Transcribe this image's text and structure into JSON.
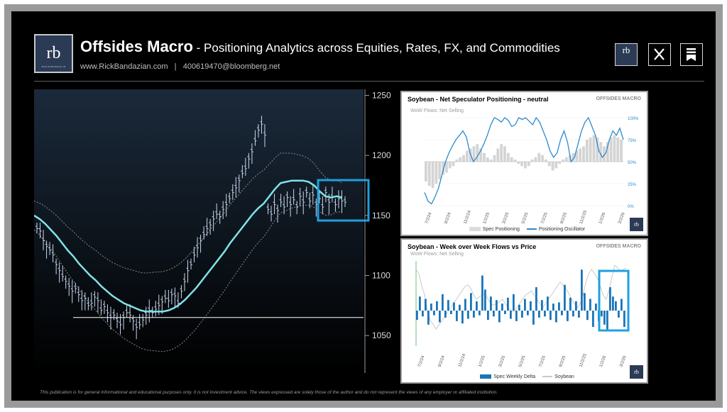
{
  "header": {
    "brand": "Offsides Macro",
    "tagline": " - Positioning Analytics across Equities, Rates, FX, and Commodities",
    "website": "www.RickBandazian.com",
    "separator": "|",
    "contact": "400619470@bloomberg.net",
    "logo_text": "rb",
    "logo_subtext": "RICK BANDAZIAN, JR"
  },
  "social": {
    "icons": [
      "rb-logo-icon",
      "x-icon",
      "substack-icon"
    ]
  },
  "colors": {
    "background": "#000000",
    "accent": "#1ea0e0",
    "moving_average": "#7fe3e8",
    "price_bars": "#c8d8ee",
    "bar_blue": "#1a74b8",
    "oscillator": "#2b8bd0"
  },
  "chart_data": [
    {
      "type": "ohlc",
      "y_ticks": [
        1250,
        1200,
        1150,
        1100,
        1050
      ],
      "ylim": [
        1020,
        1255
      ],
      "support_line": 1065,
      "prices": [
        1140,
        1138,
        1130,
        1125,
        1122,
        1118,
        1110,
        1105,
        1100,
        1096,
        1092,
        1088,
        1090,
        1085,
        1080,
        1082,
        1076,
        1078,
        1083,
        1080,
        1072,
        1075,
        1070,
        1066,
        1068,
        1063,
        1060,
        1066,
        1070,
        1068,
        1063,
        1058,
        1060,
        1064,
        1068,
        1072,
        1070,
        1073,
        1076,
        1079,
        1082,
        1080,
        1085,
        1084,
        1078,
        1088,
        1096,
        1105,
        1110,
        1118,
        1124,
        1130,
        1135,
        1140,
        1143,
        1148,
        1152,
        1150,
        1156,
        1160,
        1165,
        1170,
        1174,
        1180,
        1186,
        1190,
        1198,
        1204,
        1213,
        1222,
        1227,
        1218,
        1156,
        1152,
        1160,
        1155,
        1162,
        1158,
        1166,
        1160,
        1164,
        1158,
        1167,
        1162,
        1170,
        1163,
        1168,
        1160,
        1165,
        1158,
        1170,
        1162,
        1166,
        1160,
        1165,
        1163,
        1162
      ],
      "moving_average": [
        1150,
        1147,
        1143,
        1138,
        1133,
        1127,
        1121,
        1116,
        1110,
        1105,
        1100,
        1096,
        1091,
        1087,
        1083,
        1080,
        1077,
        1075,
        1073,
        1071,
        1070,
        1070,
        1070,
        1070,
        1071,
        1073,
        1076,
        1080,
        1085,
        1090,
        1096,
        1102,
        1108,
        1114,
        1120,
        1127,
        1133,
        1139,
        1145,
        1151,
        1156,
        1160,
        1166,
        1172,
        1177,
        1178,
        1179,
        1179,
        1179,
        1178,
        1175,
        1170,
        1166,
        1165,
        1166,
        1165
      ]
    },
    {
      "type": "bar",
      "title": "Soybean - Net Speculator Positioning - neutral",
      "subtitle": "WoW Flows: Net Selling",
      "brand": "OFFSIDES MACRO",
      "x_labels": [
        "7/2/24",
        "9/2/24",
        "11/2/24",
        "1/2/25",
        "3/2/25",
        "5/2/25",
        "7/2/25",
        "9/2/25",
        "11/2/25",
        "1/2/26",
        "3/2/26"
      ],
      "y_right_labels": [
        "100%",
        "75%",
        "50%",
        "25%",
        "0%"
      ],
      "series": [
        {
          "name": "Spec Positioning",
          "values": [
            -0.45,
            -0.55,
            -0.6,
            -0.5,
            -0.4,
            -0.3,
            -0.25,
            -0.15,
            -0.1,
            0.05,
            0.1,
            0.15,
            0.25,
            0.3,
            0.35,
            0.4,
            0.3,
            0.2,
            0.1,
            0.05,
            0.15,
            0.3,
            0.4,
            0.35,
            0.2,
            0.1,
            0.05,
            -0.05,
            -0.1,
            -0.15,
            -0.1,
            0.05,
            0.1,
            0.2,
            0.15,
            0.05,
            -0.1,
            -0.2,
            -0.15,
            -0.05,
            0.05,
            0.1,
            0.15,
            0.2,
            0.25,
            0.3,
            0.35,
            0.5,
            0.55,
            0.6,
            0.55,
            0.45,
            0.35,
            0.45,
            0.55,
            0.6,
            0.55,
            0.5
          ]
        },
        {
          "name": "Positioning Oscillator",
          "values": [
            0.15,
            0.05,
            0.02,
            0.1,
            0.2,
            0.35,
            0.5,
            0.6,
            0.68,
            0.75,
            0.8,
            0.85,
            0.78,
            0.6,
            0.5,
            0.55,
            0.62,
            0.7,
            0.8,
            0.92,
            1.0,
            0.98,
            0.95,
            1.0,
            0.97,
            0.9,
            0.92,
            1.0,
            0.98,
            1.0,
            0.96,
            0.92,
            1.0,
            0.95,
            0.85,
            0.75,
            0.62,
            0.55,
            0.6,
            0.75,
            0.85,
            0.72,
            0.5,
            0.55,
            0.7,
            0.85,
            0.95,
            1.0,
            0.9,
            0.8,
            0.62,
            0.55,
            0.6,
            0.75,
            0.85,
            0.8,
            0.88,
            0.75
          ]
        }
      ]
    },
    {
      "type": "bar",
      "title": "Soybean - Week over Week Flows vs Price",
      "subtitle": "WoW Flows: Net Selling",
      "brand": "OFFSIDES MACRO",
      "x_labels": [
        "7/2/24",
        "9/2/24",
        "11/2/24",
        "1/2/25",
        "3/2/25",
        "5/2/25",
        "7/2/25",
        "9/2/25",
        "11/2/25",
        "1/2/26",
        "3/2/26"
      ],
      "series": [
        {
          "name": "Spec Weekly Delta",
          "values": [
            -8,
            12,
            -5,
            10,
            -12,
            6,
            -4,
            8,
            -10,
            14,
            -6,
            9,
            -3,
            7,
            -9,
            5,
            -11,
            10,
            -7,
            15,
            -6,
            8,
            -4,
            30,
            18,
            -8,
            12,
            -5,
            9,
            -10,
            6,
            -3,
            11,
            -7,
            14,
            -9,
            5,
            -6,
            10,
            -4,
            8,
            -12,
            20,
            -6,
            9,
            -5,
            12,
            -8,
            6,
            -10,
            7,
            -4,
            22,
            -9,
            11,
            -5,
            8,
            -6,
            35,
            15,
            -8,
            10,
            -14,
            6,
            -9,
            -5,
            -12,
            -16,
            20,
            12,
            8,
            -6,
            10,
            -14
          ]
        },
        {
          "name": "Soybean",
          "values": [
            0.9,
            0.85,
            0.7,
            0.6,
            0.4,
            0.3,
            0.25,
            0.2,
            0.25,
            0.3,
            0.35,
            0.4,
            0.45,
            0.5,
            0.55,
            0.6,
            0.65,
            0.7,
            0.72,
            0.68,
            0.6,
            0.55,
            0.58,
            0.6,
            0.62,
            0.55,
            0.5,
            0.48,
            0.5,
            0.52,
            0.55,
            0.5,
            0.45,
            0.42,
            0.4,
            0.45,
            0.5,
            0.55,
            0.6,
            0.62,
            0.65,
            0.6,
            0.55,
            0.5,
            0.45,
            0.5,
            0.55,
            0.6,
            0.65,
            0.7,
            0.75,
            0.72,
            0.68,
            0.62,
            0.55,
            0.5,
            0.45,
            0.5,
            0.6,
            0.75,
            0.85,
            0.9,
            0.85,
            0.8,
            0.7,
            0.6,
            0.55,
            0.65,
            0.8,
            0.95,
            0.92,
            0.88,
            0.9,
            0.92
          ]
        }
      ]
    }
  ],
  "disclaimer": "This publication is for general informational and educational purposes only. It is not investment advice. The views expressed are solely those of the author and do not represent the views of any employer or affiliated institution."
}
